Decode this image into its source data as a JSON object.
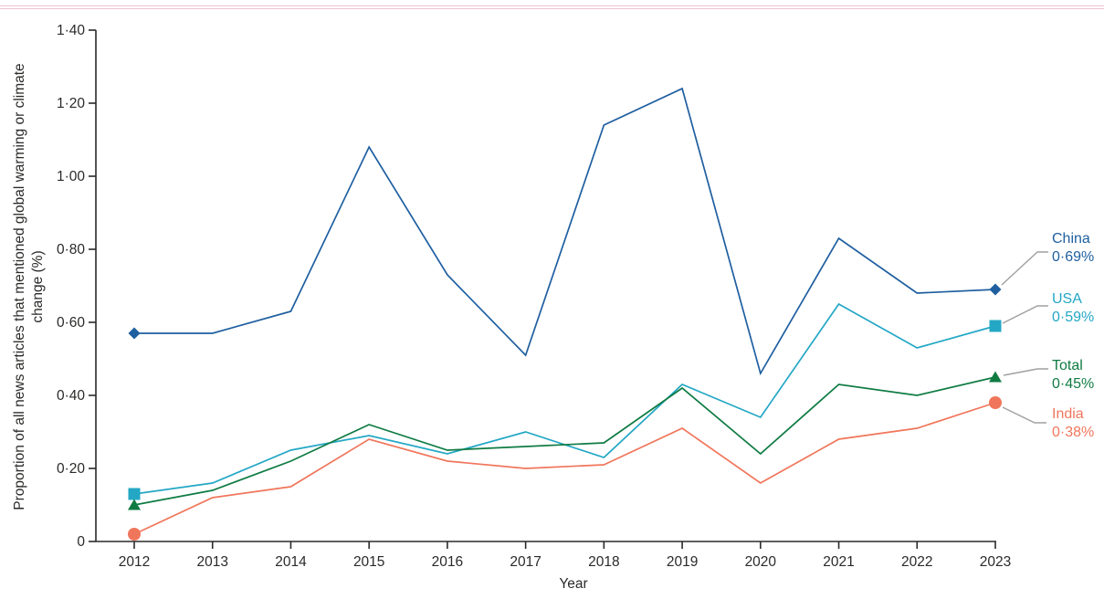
{
  "page": {
    "top_rule_color": "#c9688f",
    "background": "#ffffff"
  },
  "chart_data": {
    "type": "line",
    "title": "",
    "xlabel": "Year",
    "ylabel": "Proportion of all news articles that mentioned global warming or climate change (%)",
    "ylabel_lines": [
      "Proportion of all news articles that mentioned global warming or climate",
      "change (%)"
    ],
    "x": [
      2012,
      2013,
      2014,
      2015,
      2016,
      2017,
      2018,
      2019,
      2020,
      2021,
      2022,
      2023
    ],
    "x_tick_labels": [
      "2012",
      "2013",
      "2014",
      "2015",
      "2016",
      "2017",
      "2018",
      "2019",
      "2020",
      "2021",
      "2022",
      "2023"
    ],
    "ylim": [
      0,
      1.4
    ],
    "y_tick_interval": 0.2,
    "y_tick_labels": [
      "0",
      "0·20",
      "0·40",
      "0·60",
      "0·80",
      "1·00",
      "1·20",
      "1·40"
    ],
    "grid": false,
    "legend_position": "right-of-line-ends",
    "axis_color": "#2b2a29",
    "leader_line_color": "#a0a0a0",
    "series": [
      {
        "name": "China",
        "end_label": "0·69%",
        "color": "#1f5fa0",
        "marker": "diamond",
        "values": [
          0.57,
          0.57,
          0.63,
          1.08,
          0.73,
          0.51,
          1.14,
          1.24,
          0.46,
          0.83,
          0.68,
          0.69
        ]
      },
      {
        "name": "USA",
        "end_label": "0·59%",
        "color": "#23a7c5",
        "marker": "square",
        "values": [
          0.13,
          0.16,
          0.25,
          0.29,
          0.24,
          0.3,
          0.23,
          0.43,
          0.34,
          0.65,
          0.53,
          0.59
        ]
      },
      {
        "name": "Total",
        "end_label": "0·45%",
        "color": "#0f7b43",
        "marker": "triangle",
        "values": [
          0.1,
          0.14,
          0.22,
          0.32,
          0.25,
          0.26,
          0.27,
          0.42,
          0.24,
          0.43,
          0.4,
          0.45
        ]
      },
      {
        "name": "India",
        "end_label": "0·38%",
        "color": "#f0765b",
        "marker": "circle",
        "values": [
          0.02,
          0.12,
          0.15,
          0.28,
          0.22,
          0.2,
          0.21,
          0.31,
          0.16,
          0.28,
          0.31,
          0.38
        ]
      }
    ]
  }
}
